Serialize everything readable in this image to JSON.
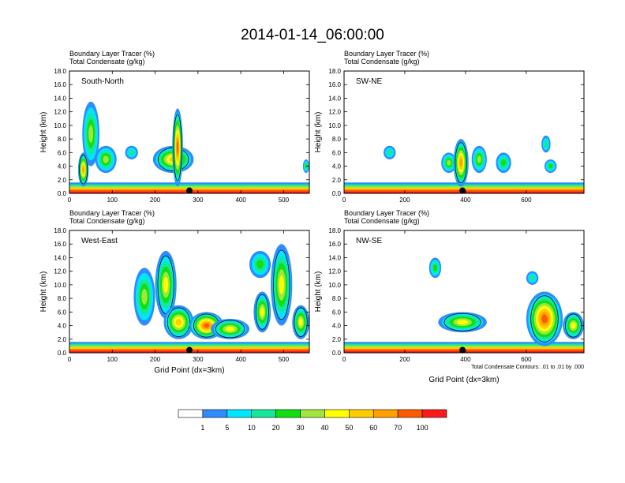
{
  "title": "2014-01-14_06:00:00",
  "colors": {
    "levels": [
      "#ffffff",
      "#2e8cff",
      "#00e6ff",
      "#16e89a",
      "#10e010",
      "#a0e63c",
      "#ffff00",
      "#ffcc00",
      "#ffa000",
      "#ff5a00",
      "#ff1a1a"
    ],
    "contour": "#000000"
  },
  "panels": [
    {
      "id": "south-north",
      "label": "South-North",
      "field_left": "Boundary Layer Tracer   (%)",
      "field_left2": "Total Condensate   (g/kg)",
      "ylabel": "Height (km)",
      "xlabel": "",
      "xmax": 560,
      "xticks": [
        "0",
        "100",
        "200",
        "300",
        "400",
        "500"
      ],
      "xtick_values": [
        0,
        100,
        200,
        300,
        400,
        500
      ],
      "yticks": [
        "0.0",
        "2.0",
        "4.0",
        "6.0",
        "8.0",
        "10.0",
        "12.0",
        "14.0",
        "16.0",
        "18.0"
      ],
      "marker_x": 280,
      "footnote": ""
    },
    {
      "id": "sw-ne",
      "label": "SW-NE",
      "field_left": "Boundary Layer Tracer   (%)",
      "field_left2": "Total Condensate   (g/kg)",
      "ylabel": "Height (km)",
      "xlabel": "",
      "xmax": 790,
      "xticks": [
        "0",
        "200",
        "400",
        "600"
      ],
      "xtick_values": [
        0,
        200,
        400,
        600
      ],
      "yticks": [
        "0.0",
        "2.0",
        "4.0",
        "6.0",
        "8.0",
        "10.0",
        "12.0",
        "14.0",
        "16.0",
        "18.0"
      ],
      "marker_x": 390,
      "footnote": ""
    },
    {
      "id": "west-east",
      "label": "West-East",
      "field_left": "Boundary Layer Tracer   (%)",
      "field_left2": "Total Condensate   (g/kg)",
      "ylabel": "Height (km)",
      "xlabel": "Grid Point (dx=3km)",
      "xmax": 560,
      "xticks": [
        "0",
        "100",
        "200",
        "300",
        "400",
        "500"
      ],
      "xtick_values": [
        0,
        100,
        200,
        300,
        400,
        500
      ],
      "yticks": [
        "0.0",
        "2.0",
        "4.0",
        "6.0",
        "8.0",
        "10.0",
        "12.0",
        "14.0",
        "16.0",
        "18.0"
      ],
      "marker_x": 280,
      "footnote": ""
    },
    {
      "id": "nw-se",
      "label": "NW-SE",
      "field_left": "Boundary Layer Tracer   (%)",
      "field_left2": "Total Condensate   (g/kg)",
      "ylabel": "Height (km)",
      "xlabel": "Grid Point (dx=3km)",
      "xmax": 790,
      "xticks": [
        "0",
        "200",
        "400",
        "600"
      ],
      "xtick_values": [
        0,
        200,
        400,
        600
      ],
      "yticks": [
        "0.0",
        "2.0",
        "4.0",
        "6.0",
        "8.0",
        "10.0",
        "12.0",
        "14.0",
        "16.0",
        "18.0"
      ],
      "marker_x": 390,
      "footnote": "Total Condensate Contours: .01 to .01 by .000"
    }
  ],
  "chart_data": {
    "type": "heatmap",
    "title": "2014-01-14_06:00:00",
    "ylim": [
      0,
      18
    ],
    "colorbar_labels": [
      "1",
      "5",
      "10",
      "20",
      "30",
      "40",
      "50",
      "60",
      "70",
      "100"
    ],
    "colorbar_levels": [
      1,
      5,
      10,
      20,
      30,
      40,
      50,
      60,
      70,
      100
    ],
    "panels": [
      {
        "name": "South-North",
        "xlim": [
          0,
          560
        ],
        "blobs": [
          {
            "x": [
              30,
              70
            ],
            "z": [
              4,
              13.5
            ],
            "max": 30
          },
          {
            "x": [
              20,
              45
            ],
            "z": [
              1,
              6
            ],
            "max": 60
          },
          {
            "x": [
              60,
              110
            ],
            "z": [
              3,
              7
            ],
            "max": 30
          },
          {
            "x": [
              130,
              160
            ],
            "z": [
              5,
              7
            ],
            "max": 10
          },
          {
            "x": [
              195,
              290
            ],
            "z": [
              3,
              7
            ],
            "max": 50
          },
          {
            "x": [
              240,
              265
            ],
            "z": [
              1,
              12.5
            ],
            "max": 70
          },
          {
            "x": [
              545,
              560
            ],
            "z": [
              3,
              5
            ],
            "max": 20
          }
        ]
      },
      {
        "name": "SW-NE",
        "xlim": [
          0,
          790
        ],
        "blobs": [
          {
            "x": [
              130,
              170
            ],
            "z": [
              5,
              7
            ],
            "max": 10
          },
          {
            "x": [
              320,
              370
            ],
            "z": [
              3,
              6
            ],
            "max": 30
          },
          {
            "x": [
              360,
              410
            ],
            "z": [
              1,
              8
            ],
            "max": 60
          },
          {
            "x": [
              420,
              470
            ],
            "z": [
              3,
              7
            ],
            "max": 30
          },
          {
            "x": [
              500,
              550
            ],
            "z": [
              3,
              6
            ],
            "max": 20
          },
          {
            "x": [
              650,
              680
            ],
            "z": [
              6,
              8.5
            ],
            "max": 10
          },
          {
            "x": [
              660,
              700
            ],
            "z": [
              3,
              5
            ],
            "max": 20
          }
        ]
      },
      {
        "name": "West-East",
        "xlim": [
          0,
          560
        ],
        "blobs": [
          {
            "x": [
              150,
              200
            ],
            "z": [
              4,
              12.5
            ],
            "max": 30
          },
          {
            "x": [
              200,
              250
            ],
            "z": [
              5,
              15
            ],
            "max": 40
          },
          {
            "x": [
              220,
              290
            ],
            "z": [
              2,
              7
            ],
            "max": 50
          },
          {
            "x": [
              280,
              360
            ],
            "z": [
              2,
              6
            ],
            "max": 70
          },
          {
            "x": [
              330,
              420
            ],
            "z": [
              2,
              5
            ],
            "max": 40
          },
          {
            "x": [
              420,
              470
            ],
            "z": [
              11,
              15
            ],
            "max": 20
          },
          {
            "x": [
              430,
              470
            ],
            "z": [
              3,
              9
            ],
            "max": 40
          },
          {
            "x": [
              470,
              520
            ],
            "z": [
              4,
              16
            ],
            "max": 40
          },
          {
            "x": [
              520,
              560
            ],
            "z": [
              2,
              7
            ],
            "max": 40
          }
        ]
      },
      {
        "name": "NW-SE",
        "xlim": [
          0,
          790
        ],
        "blobs": [
          {
            "x": [
              280,
              320
            ],
            "z": [
              11,
              14
            ],
            "max": 20
          },
          {
            "x": [
              310,
              470
            ],
            "z": [
              3,
              6
            ],
            "max": 40
          },
          {
            "x": [
              600,
              640
            ],
            "z": [
              10,
              12
            ],
            "max": 10
          },
          {
            "x": [
              600,
              720
            ],
            "z": [
              1,
              9
            ],
            "max": 70
          },
          {
            "x": [
              720,
              790
            ],
            "z": [
              2,
              6
            ],
            "max": 40
          }
        ]
      }
    ],
    "boundary_layer": {
      "z_top": 1.6,
      "max": 100
    }
  }
}
